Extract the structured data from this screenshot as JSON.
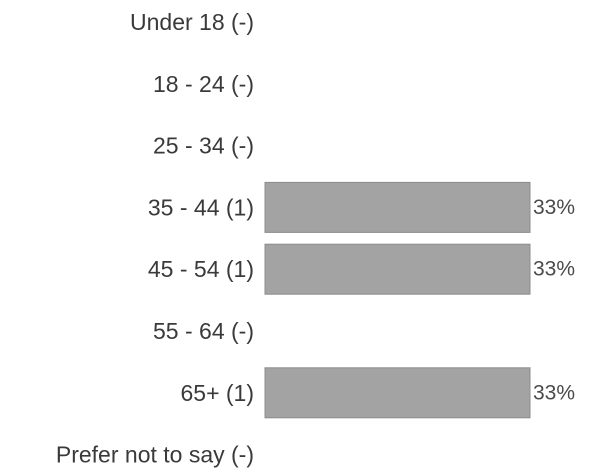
{
  "chart_data": {
    "type": "bar",
    "orientation": "horizontal",
    "title": "",
    "xlabel": "",
    "ylabel": "",
    "categories": [
      "Under 18 (-)",
      "18 - 24 (-)",
      "25 - 34 (-)",
      "35 - 44 (1)",
      "45 - 54 (1)",
      "55 - 64 (-)",
      "65+ (1)",
      "Prefer not to say (-)"
    ],
    "values": [
      0,
      0,
      0,
      33,
      33,
      0,
      33,
      0
    ],
    "value_labels": [
      "",
      "",
      "",
      "33%",
      "33%",
      "",
      "33%",
      ""
    ],
    "unit": "%",
    "xlim": [
      0,
      33
    ],
    "grid": false,
    "bar_color": "#a3a3a3",
    "bar_border_color": "#8c8c8c"
  }
}
